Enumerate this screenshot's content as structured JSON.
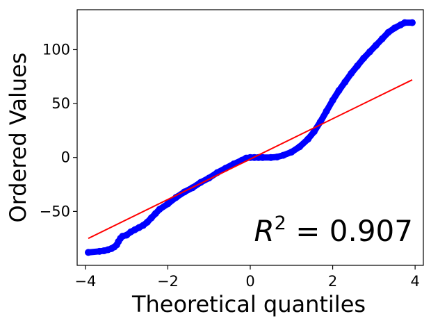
{
  "chart_data": {
    "type": "scatter",
    "xlabel": "Theoretical quantiles",
    "ylabel": "Ordered Values",
    "xlim": [
      -4.2,
      4.2
    ],
    "ylim": [
      -100,
      137
    ],
    "xticks": [
      -4,
      -2,
      0,
      2,
      4
    ],
    "xtick_labels": [
      "−4",
      "−2",
      "0",
      "2",
      "4"
    ],
    "yticks": [
      -50,
      0,
      50,
      100
    ],
    "ytick_labels": [
      "−50",
      "0",
      "50",
      "100"
    ],
    "grid": false,
    "annotation": {
      "symbol": "R",
      "exponent": "2",
      "text": " = 0.907",
      "placement": "bottom-right"
    },
    "series": [
      {
        "type": "scatter",
        "color": "#0000ff",
        "points": [
          [
            -3.93,
            -88
          ],
          [
            -3.66,
            -87
          ],
          [
            -3.55,
            -86.5
          ],
          [
            -3.45,
            -85.5
          ],
          [
            -3.37,
            -84.5
          ],
          [
            -3.3,
            -83
          ],
          [
            -3.24,
            -81
          ],
          [
            -3.2,
            -78
          ],
          [
            -3.15,
            -75
          ],
          [
            -3.1,
            -73
          ],
          [
            -3.0,
            -72
          ],
          [
            -2.9,
            -69
          ],
          [
            -2.8,
            -67
          ],
          [
            -2.7,
            -65
          ],
          [
            -2.6,
            -63
          ],
          [
            -2.5,
            -60
          ],
          [
            -2.4,
            -56
          ],
          [
            -2.3,
            -52
          ],
          [
            -2.2,
            -48
          ],
          [
            -2.0,
            -43
          ],
          [
            -1.8,
            -37
          ],
          [
            -1.6,
            -32
          ],
          [
            -1.4,
            -28
          ],
          [
            -1.2,
            -23
          ],
          [
            -1.0,
            -19
          ],
          [
            -0.8,
            -14
          ],
          [
            -0.6,
            -10
          ],
          [
            -0.4,
            -6
          ],
          [
            -0.2,
            -2.5
          ],
          [
            -0.1,
            -0.6
          ],
          [
            0.0,
            0
          ],
          [
            0.1,
            0
          ],
          [
            0.2,
            0
          ],
          [
            0.3,
            0
          ],
          [
            0.5,
            0
          ],
          [
            0.65,
            0.5
          ],
          [
            0.8,
            2
          ],
          [
            1.0,
            5
          ],
          [
            1.2,
            10
          ],
          [
            1.4,
            17
          ],
          [
            1.55,
            24
          ],
          [
            1.7,
            33
          ],
          [
            1.85,
            43
          ],
          [
            2.0,
            53
          ],
          [
            2.15,
            62
          ],
          [
            2.3,
            70
          ],
          [
            2.45,
            78
          ],
          [
            2.6,
            85
          ],
          [
            2.75,
            92
          ],
          [
            2.9,
            98
          ],
          [
            3.05,
            104
          ],
          [
            3.2,
            110
          ],
          [
            3.35,
            116
          ],
          [
            3.5,
            120
          ],
          [
            3.65,
            123
          ],
          [
            3.75,
            125
          ],
          [
            3.93,
            125
          ]
        ]
      },
      {
        "type": "line",
        "color": "#ff0000",
        "x": [
          -3.93,
          3.93
        ],
        "y": [
          -75,
          72
        ]
      }
    ]
  }
}
